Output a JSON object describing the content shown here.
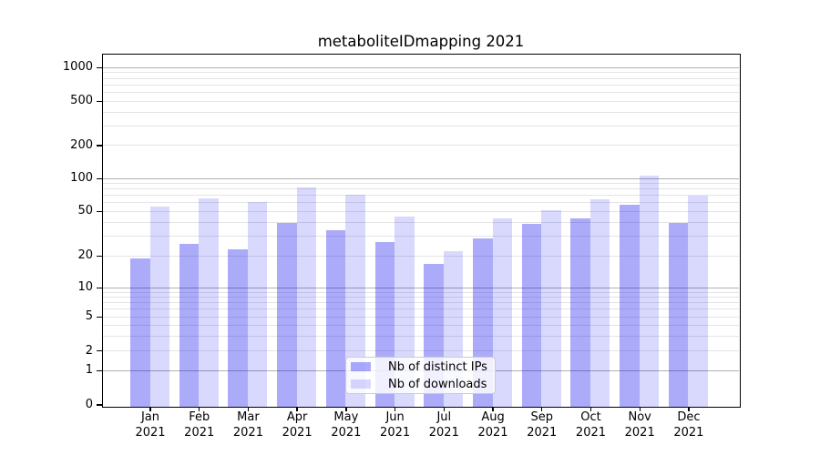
{
  "title": "metaboliteIDmapping 2021",
  "chart_data": {
    "type": "bar",
    "title": "metaboliteIDmapping 2021",
    "categories": [
      "Jan 2021",
      "Feb 2021",
      "Mar 2021",
      "Apr 2021",
      "May 2021",
      "Jun 2021",
      "Jul 2021",
      "Aug 2021",
      "Sep 2021",
      "Oct 2021",
      "Nov 2021",
      "Dec 2021"
    ],
    "series": [
      {
        "name": "Nb of distinct IPs",
        "values": [
          19,
          26,
          23,
          40,
          34,
          27,
          17,
          29,
          39,
          44,
          58,
          40
        ],
        "color": "rgba(0,0,240,0.33)"
      },
      {
        "name": "Nb of downloads",
        "values": [
          56,
          66,
          62,
          84,
          72,
          45,
          22,
          44,
          52,
          65,
          107,
          70
        ],
        "color": "rgba(0,0,240,0.15)"
      }
    ],
    "xlabel": "",
    "ylabel": "",
    "yscale": "symlog",
    "yticks": [
      0,
      1,
      2,
      5,
      10,
      20,
      50,
      100,
      200,
      500,
      1000
    ],
    "ylim": [
      0,
      1400
    ],
    "grid": true,
    "legend_position": "lower center"
  },
  "colors": {
    "bar_distinct_ips": "rgba(0,0,240,0.33)",
    "bar_downloads": "rgba(0,0,240,0.15)",
    "grid_major": "#b0b0b0",
    "grid_minor": "#e4e4e4",
    "spine": "#000000",
    "legend_border": "#cccccc"
  }
}
